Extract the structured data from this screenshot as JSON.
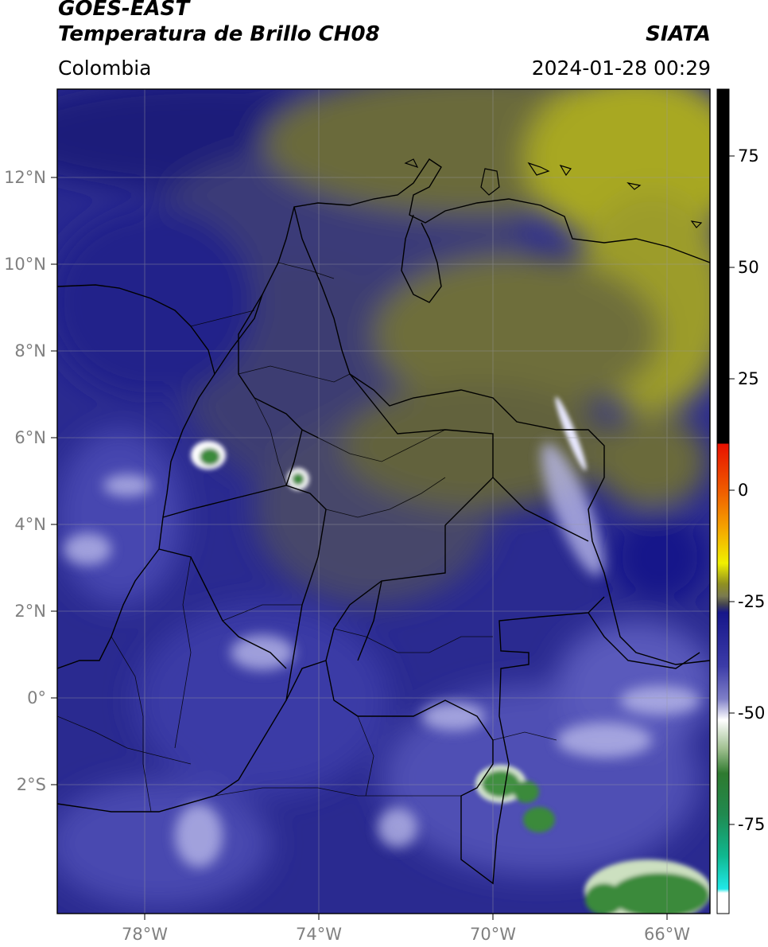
{
  "header": {
    "satellite": "GOES-EAST",
    "product": "Temperatura de Brillo CH08",
    "region": "Colombia",
    "organization": "SIATA",
    "datetime": "2024-01-28 00:29"
  },
  "map": {
    "lon_range": [
      -80,
      -65
    ],
    "lat_range": [
      -5,
      14
    ],
    "lon_ticks": [
      {
        "value": -78,
        "label": "78°W"
      },
      {
        "value": -74,
        "label": "74°W"
      },
      {
        "value": -70,
        "label": "70°W"
      },
      {
        "value": -66,
        "label": "66°W"
      }
    ],
    "lat_ticks": [
      {
        "value": 12,
        "label": "12°N"
      },
      {
        "value": 10,
        "label": "10°N"
      },
      {
        "value": 8,
        "label": "8°N"
      },
      {
        "value": 6,
        "label": "6°N"
      },
      {
        "value": 4,
        "label": "4°N"
      },
      {
        "value": 2,
        "label": "2°N"
      },
      {
        "value": 0,
        "label": "0°"
      },
      {
        "value": -2,
        "label": "2°S"
      }
    ],
    "gridlines": true,
    "cold_cloud_tops_lonlat": [
      [
        -76.6,
        5.8
      ],
      [
        -74.5,
        5.0
      ],
      [
        -69.6,
        -1.7
      ],
      [
        -68.8,
        -2.1
      ],
      [
        -68.4,
        -2.9
      ],
      [
        -65.9,
        -4.6
      ],
      [
        -67.5,
        -4.7
      ]
    ]
  },
  "colorbar": {
    "range": [
      -95,
      90
    ],
    "ticks": [
      {
        "value": 75,
        "label": "75"
      },
      {
        "value": 50,
        "label": "50"
      },
      {
        "value": 25,
        "label": "25"
      },
      {
        "value": 0,
        "label": "0"
      },
      {
        "value": -25,
        "label": "-25"
      },
      {
        "value": -50,
        "label": "-50"
      },
      {
        "value": -75,
        "label": "-75"
      }
    ],
    "colors": {
      "black": "#000000",
      "red": "#e81000",
      "orange": "#f5a000",
      "yellow": "#f0f000",
      "olive": "#8a8a20",
      "gray": "#555560",
      "navy": "#14147a",
      "blue": "#3c3ca8",
      "lavender": "#a8a8d8",
      "white": "#ffffff",
      "green": "#2f8a2f",
      "teal": "#10b890",
      "cyan": "#20e8e8"
    }
  }
}
